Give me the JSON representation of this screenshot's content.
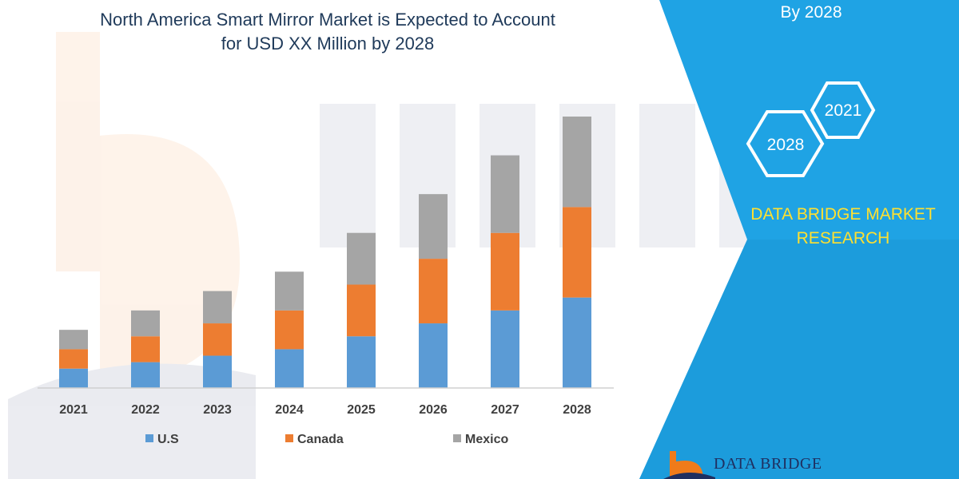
{
  "colors": {
    "us": "#5b9bd5",
    "canada": "#ed7d31",
    "mexico": "#a5a5a5",
    "panel": "#1fa3e4",
    "brand_text": "#ffe030",
    "logo_orange": "#f07b1a",
    "logo_navy": "#1f2f60"
  },
  "chart_data": {
    "type": "bar",
    "stacked": true,
    "title": "North America Smart Mirror Market is Expected to Account for USD XX Million by 2028",
    "title_lines": [
      "North America Smart Mirror Market is Expected to Account",
      "for USD XX Million by 2028"
    ],
    "categories": [
      "2021",
      "2022",
      "2023",
      "2024",
      "2025",
      "2026",
      "2027",
      "2028"
    ],
    "series": [
      {
        "name": "U.S",
        "values": [
          3,
          4,
          5,
          6,
          8,
          10,
          12,
          14
        ]
      },
      {
        "name": "Canada",
        "values": [
          3,
          4,
          5,
          6,
          8,
          10,
          12,
          14
        ]
      },
      {
        "name": "Mexico",
        "values": [
          3,
          4,
          5,
          6,
          8,
          10,
          12,
          14
        ]
      }
    ],
    "xlabel": "",
    "ylabel": "",
    "ylim": [
      0,
      42
    ],
    "grid": false,
    "legend_position": "bottom"
  },
  "panel": {
    "top_text": "By 2028",
    "hexagons": [
      "2021",
      "2028"
    ],
    "brand_lines": [
      "DATA BRIDGE MARKET",
      "RESEARCH"
    ]
  },
  "footer": {
    "logo_text": "DATA BRIDGE"
  },
  "icons": [
    "hexagon-icon",
    "data-bridge-logo-icon",
    "watermark-logo-icon"
  ]
}
